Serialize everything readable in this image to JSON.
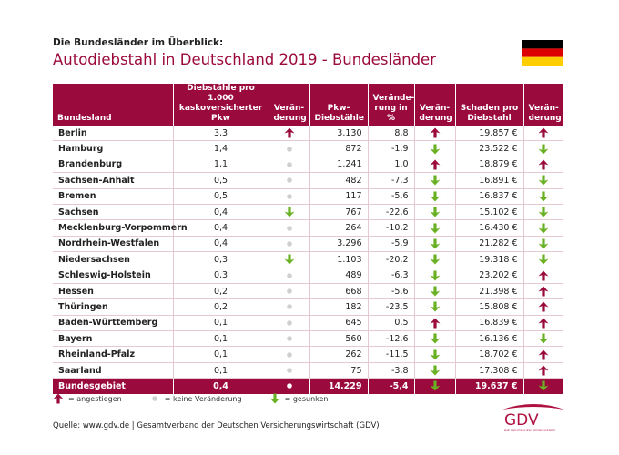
{
  "header": {
    "kicker": "Die Bundesländer im Überblick:",
    "title": "Autodiebstahl in Deutschland 2019 - Bundesländer"
  },
  "table": {
    "columns": [
      "Bundesland",
      "Diebstähle pro 1.000\nkaskoversicherter Pkw",
      "Verän-\nderung",
      "Pkw-\nDiebstähle",
      "Verände-\nrung in %",
      "Verän-\nderung",
      "Schaden pro\nDiebstahl",
      "Verän-\nderung"
    ],
    "rows": [
      [
        "Berlin",
        "3,3",
        "3.130",
        "8,8",
        "19.857 €"
      ],
      [
        "Hamburg",
        "1,4",
        "872",
        "-1,9",
        "23.522 €"
      ],
      [
        "Brandenburg",
        "1,1",
        "1.241",
        "1,0",
        "18.879 €"
      ],
      [
        "Sachsen-Anhalt",
        "0,5",
        "482",
        "-7,3",
        "16.891 €"
      ],
      [
        "Bremen",
        "0,5",
        "117",
        "-5,6",
        "16.837 €"
      ],
      [
        "Sachsen",
        "0,4",
        "767",
        "-22,6",
        "15.102 €"
      ],
      [
        "Mecklenburg-Vorpommern",
        "0,4",
        "264",
        "-10,2",
        "16.430 €"
      ],
      [
        "Nordrhein-Westfalen",
        "0,4",
        "3.296",
        "-5,9",
        "21.282 €"
      ],
      [
        "Niedersachsen",
        "0,3",
        "1.103",
        "-20,2",
        "19.318 €"
      ],
      [
        "Schleswig-Holstein",
        "0,3",
        "489",
        "-6,3",
        "23.202 €"
      ],
      [
        "Hessen",
        "0,2",
        "668",
        "-5,6",
        "21.398 €"
      ],
      [
        "Thüringen",
        "0,2",
        "182",
        "-23,5",
        "15.808 €"
      ],
      [
        "Baden-Württemberg",
        "0,1",
        "645",
        "0,5",
        "16.839 €"
      ],
      [
        "Bayern",
        "0,1",
        "560",
        "-12,6",
        "16.136 €"
      ],
      [
        "Rheinland-Pfalz",
        "0,1",
        "262",
        "-11,5",
        "18.702 €"
      ],
      [
        "Saarland",
        "0,1",
        "75",
        "-3,8",
        "17.308 €"
      ]
    ],
    "total": [
      "Bundesgebiet",
      "0,4",
      "14.229",
      "-5,4",
      "19.637 €"
    ]
  },
  "legend": [
    "= angestiegen",
    "= keine Veränderung",
    "= gesunken"
  ],
  "footer": {
    "source": "Quelle: www.gdv.de | Gesamtverband der Deutschen Versicherungswirtschaft (GDV)",
    "logo": "GDV",
    "logo_tagline": "DIE DEUTSCHEN VERSICHERER"
  }
}
